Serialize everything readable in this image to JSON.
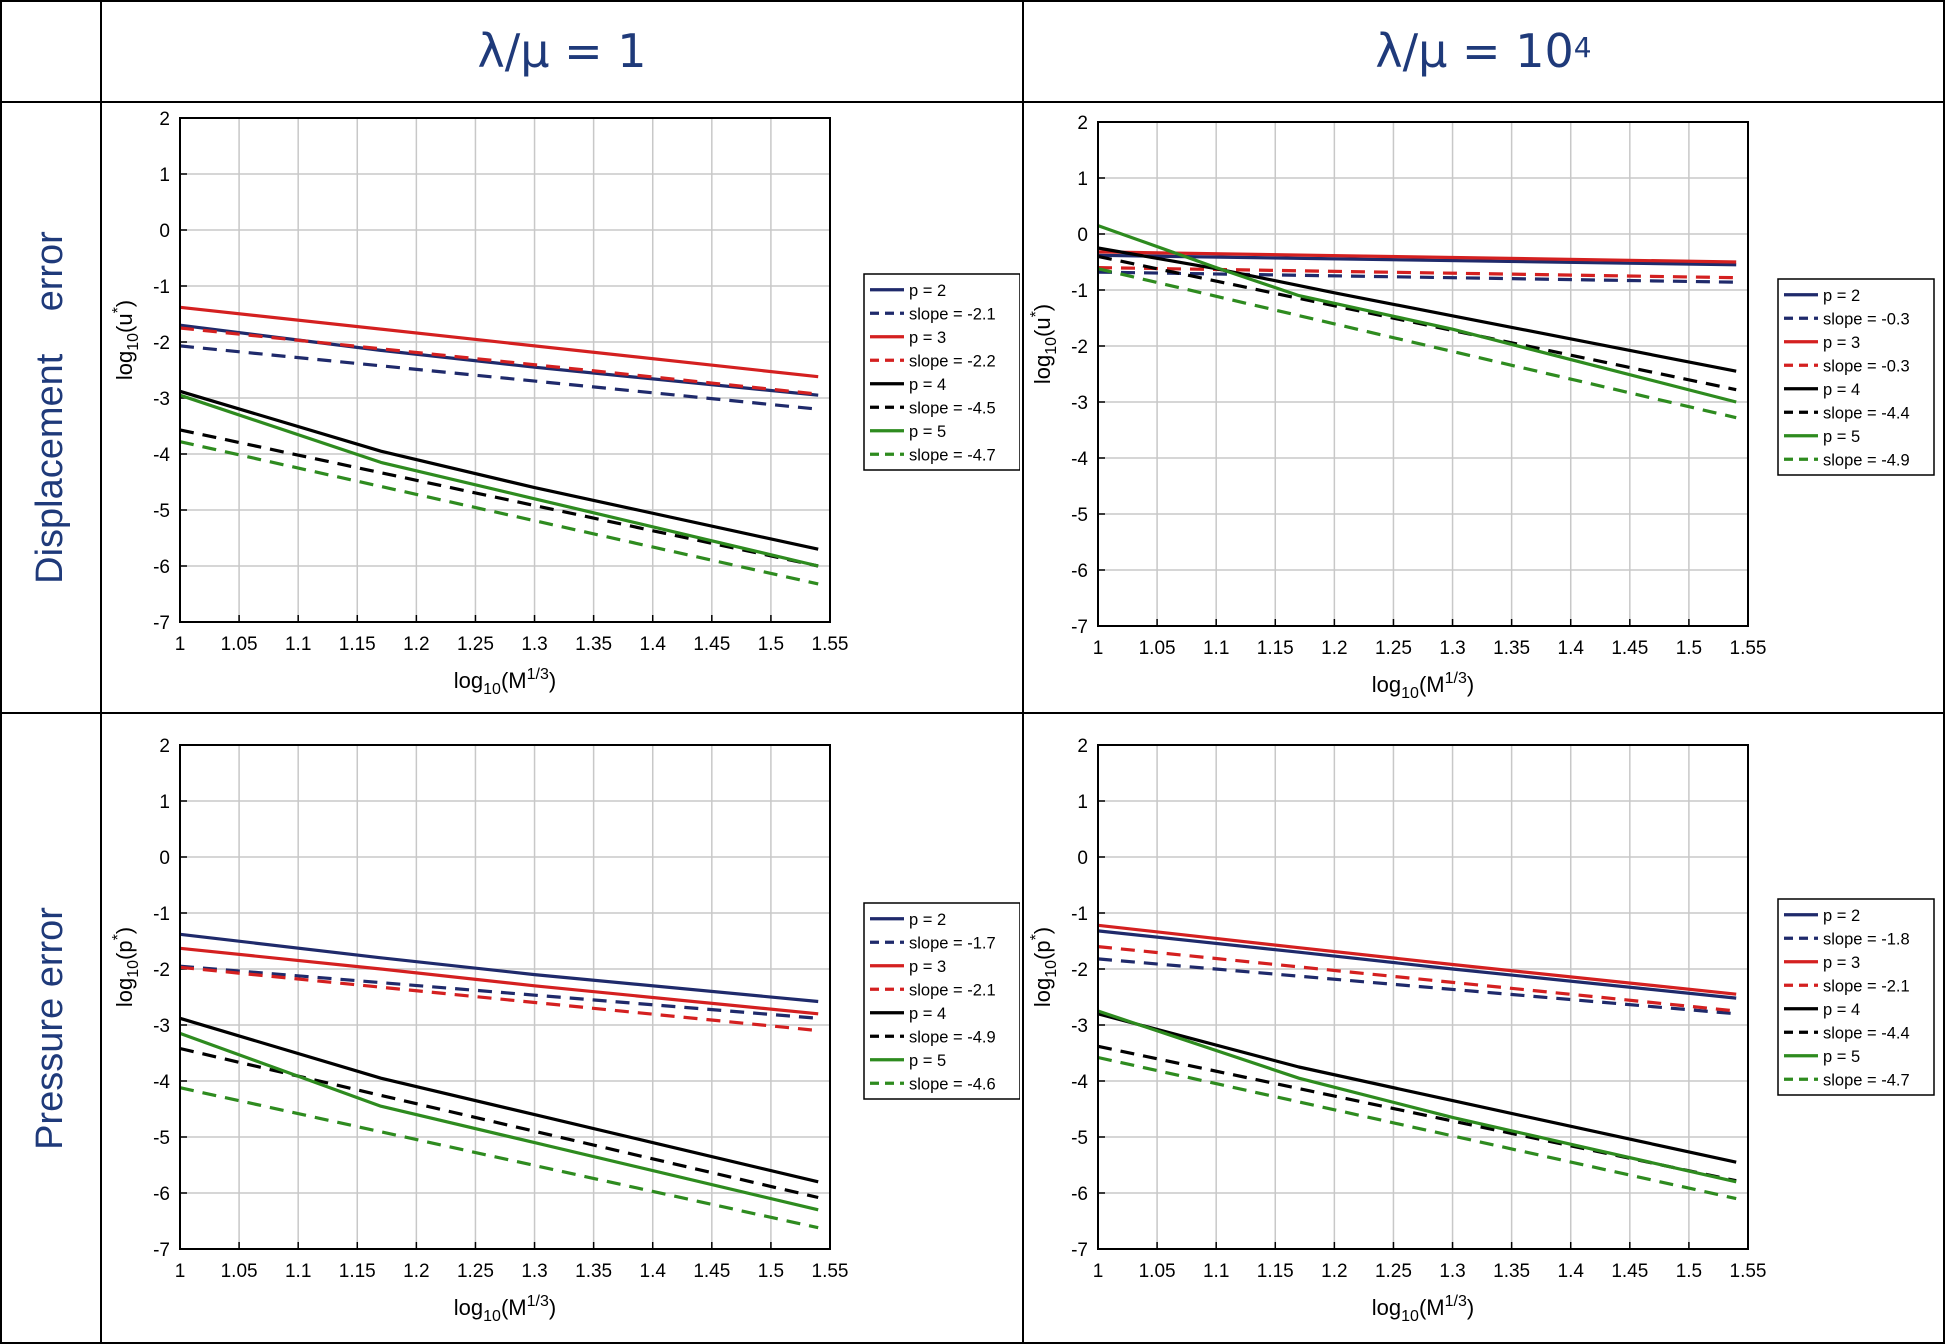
{
  "table": {
    "col_headers": [
      {
        "main": "λ/μ = 1",
        "sup": ""
      },
      {
        "main": "λ/μ = 10",
        "sup": "4"
      }
    ],
    "row_headers": [
      {
        "part1": "Displacement",
        "part2": "error"
      },
      {
        "part1": "Pressure error",
        "part2": ""
      }
    ]
  },
  "chart_data": [
    {
      "type": "line",
      "panel": "displacement, λ/μ = 1",
      "xlabel": "log10(M1/3)",
      "ylabel": "log10(u*)",
      "xlim": [
        1,
        1.55
      ],
      "ylim": [
        -7,
        2
      ],
      "xticks": [
        "1",
        "1.05",
        "1.1",
        "1.15",
        "1.2",
        "1.25",
        "1.3",
        "1.35",
        "1.4",
        "1.45",
        "1.5",
        "1.55"
      ],
      "yticks": [
        "-7",
        "-6",
        "-5",
        "-4",
        "-3",
        "-2",
        "-1",
        "0",
        "1",
        "2"
      ],
      "grid": true,
      "legend_position": "outside-right",
      "series": [
        {
          "name": "p = 2",
          "color": "#1f2a6b",
          "dash": false,
          "x": [
            1,
            1.17,
            1.3,
            1.54
          ],
          "y": [
            -1.7,
            -2.15,
            -2.45,
            -2.95
          ]
        },
        {
          "name": "slope = -2.1",
          "color": "#1f2a6b",
          "dash": true,
          "x": [
            1,
            1.54
          ],
          "y": [
            -2.07,
            -3.2
          ]
        },
        {
          "name": "p = 3",
          "color": "#d42020",
          "dash": false,
          "x": [
            1,
            1.54
          ],
          "y": [
            -1.38,
            -2.62
          ]
        },
        {
          "name": "slope = -2.2",
          "color": "#d42020",
          "dash": true,
          "x": [
            1,
            1.54
          ],
          "y": [
            -1.75,
            -2.93
          ]
        },
        {
          "name": "p = 4",
          "color": "#000000",
          "dash": false,
          "x": [
            1,
            1.17,
            1.3,
            1.54
          ],
          "y": [
            -2.88,
            -3.95,
            -4.6,
            -5.7
          ]
        },
        {
          "name": "slope = -4.5",
          "color": "#000000",
          "dash": true,
          "x": [
            1,
            1.54
          ],
          "y": [
            -3.57,
            -6.0
          ]
        },
        {
          "name": "p = 5",
          "color": "#2e8b1f",
          "dash": false,
          "x": [
            1,
            1.17,
            1.3,
            1.54
          ],
          "y": [
            -2.95,
            -4.15,
            -4.8,
            -6.0
          ]
        },
        {
          "name": "slope = -4.7",
          "color": "#2e8b1f",
          "dash": true,
          "x": [
            1,
            1.54
          ],
          "y": [
            -3.78,
            -6.32
          ]
        }
      ]
    },
    {
      "type": "line",
      "panel": "displacement, λ/μ = 10^4",
      "xlabel": "log10(M1/3)",
      "ylabel": "log10(u*)",
      "xlim": [
        1,
        1.55
      ],
      "ylim": [
        -7,
        2
      ],
      "xticks": [
        "1",
        "1.05",
        "1.1",
        "1.15",
        "1.2",
        "1.25",
        "1.3",
        "1.35",
        "1.4",
        "1.45",
        "1.5",
        "1.55"
      ],
      "yticks": [
        "-7",
        "-6",
        "-5",
        "-4",
        "-3",
        "-2",
        "-1",
        "0",
        "1",
        "2"
      ],
      "grid": true,
      "legend_position": "outside-right",
      "series": [
        {
          "name": "p = 2",
          "color": "#1f2a6b",
          "dash": false,
          "x": [
            1,
            1.54
          ],
          "y": [
            -0.38,
            -0.55
          ]
        },
        {
          "name": "slope = -0.3",
          "color": "#1f2a6b",
          "dash": true,
          "x": [
            1,
            1.54
          ],
          "y": [
            -0.68,
            -0.86
          ]
        },
        {
          "name": "p = 3",
          "color": "#d42020",
          "dash": false,
          "x": [
            1,
            1.54
          ],
          "y": [
            -0.32,
            -0.5
          ]
        },
        {
          "name": "slope = -0.3",
          "color": "#d42020",
          "dash": true,
          "x": [
            1,
            1.54
          ],
          "y": [
            -0.6,
            -0.78
          ]
        },
        {
          "name": "p = 4",
          "color": "#000000",
          "dash": false,
          "x": [
            1,
            1.1,
            1.2,
            1.54
          ],
          "y": [
            -0.25,
            -0.62,
            -1.05,
            -2.45
          ]
        },
        {
          "name": "slope = -4.4",
          "color": "#000000",
          "dash": true,
          "x": [
            1,
            1.54
          ],
          "y": [
            -0.4,
            -2.78
          ]
        },
        {
          "name": "p = 5",
          "color": "#2e8b1f",
          "dash": false,
          "x": [
            1,
            1.1,
            1.17,
            1.3,
            1.54
          ],
          "y": [
            0.15,
            -0.6,
            -1.1,
            -1.7,
            -3.0
          ]
        },
        {
          "name": "slope = -4.9",
          "color": "#2e8b1f",
          "dash": true,
          "x": [
            1,
            1.54
          ],
          "y": [
            -0.62,
            -3.28
          ]
        }
      ]
    },
    {
      "type": "line",
      "panel": "pressure, λ/μ = 1",
      "xlabel": "log10(M1/3)",
      "ylabel": "log10(p*)",
      "xlim": [
        1,
        1.55
      ],
      "ylim": [
        -7,
        2
      ],
      "xticks": [
        "1",
        "1.05",
        "1.1",
        "1.15",
        "1.2",
        "1.25",
        "1.3",
        "1.35",
        "1.4",
        "1.45",
        "1.5",
        "1.55"
      ],
      "yticks": [
        "-7",
        "-6",
        "-5",
        "-4",
        "-3",
        "-2",
        "-1",
        "0",
        "1",
        "2"
      ],
      "grid": true,
      "legend_position": "outside-right",
      "series": [
        {
          "name": "p = 2",
          "color": "#1f2a6b",
          "dash": false,
          "x": [
            1,
            1.17,
            1.3,
            1.54
          ],
          "y": [
            -1.38,
            -1.8,
            -2.1,
            -2.58
          ]
        },
        {
          "name": "slope = -1.7",
          "color": "#1f2a6b",
          "dash": true,
          "x": [
            1,
            1.54
          ],
          "y": [
            -1.95,
            -2.88
          ]
        },
        {
          "name": "p = 3",
          "color": "#d42020",
          "dash": false,
          "x": [
            1,
            1.17,
            1.3,
            1.54
          ],
          "y": [
            -1.63,
            -2.0,
            -2.3,
            -2.8
          ]
        },
        {
          "name": "slope = -2.1",
          "color": "#d42020",
          "dash": true,
          "x": [
            1,
            1.54
          ],
          "y": [
            -1.97,
            -3.1
          ]
        },
        {
          "name": "p = 4",
          "color": "#000000",
          "dash": false,
          "x": [
            1,
            1.17,
            1.3,
            1.54
          ],
          "y": [
            -2.88,
            -3.95,
            -4.6,
            -5.8
          ]
        },
        {
          "name": "slope = -4.9",
          "color": "#000000",
          "dash": true,
          "x": [
            1,
            1.54
          ],
          "y": [
            -3.42,
            -6.08
          ]
        },
        {
          "name": "p = 5",
          "color": "#2e8b1f",
          "dash": false,
          "x": [
            1,
            1.17,
            1.3,
            1.54
          ],
          "y": [
            -3.15,
            -4.45,
            -5.1,
            -6.3
          ]
        },
        {
          "name": "slope = -4.6",
          "color": "#2e8b1f",
          "dash": true,
          "x": [
            1,
            1.54
          ],
          "y": [
            -4.12,
            -6.62
          ]
        }
      ]
    },
    {
      "type": "line",
      "panel": "pressure, λ/μ = 10^4",
      "xlabel": "log10(M1/3)",
      "ylabel": "log10(p*)",
      "xlim": [
        1,
        1.55
      ],
      "ylim": [
        -7,
        2
      ],
      "xticks": [
        "1",
        "1.05",
        "1.1",
        "1.15",
        "1.2",
        "1.25",
        "1.3",
        "1.35",
        "1.4",
        "1.45",
        "1.5",
        "1.55"
      ],
      "yticks": [
        "-7",
        "-6",
        "-5",
        "-4",
        "-3",
        "-2",
        "-1",
        "0",
        "1",
        "2"
      ],
      "grid": true,
      "legend_position": "outside-right",
      "series": [
        {
          "name": "p = 2",
          "color": "#1f2a6b",
          "dash": false,
          "x": [
            1,
            1.17,
            1.3,
            1.54
          ],
          "y": [
            -1.32,
            -1.7,
            -2.0,
            -2.52
          ]
        },
        {
          "name": "slope = -1.8",
          "color": "#1f2a6b",
          "dash": true,
          "x": [
            1,
            1.54
          ],
          "y": [
            -1.82,
            -2.8
          ]
        },
        {
          "name": "p = 3",
          "color": "#d42020",
          "dash": false,
          "x": [
            1,
            1.17,
            1.3,
            1.54
          ],
          "y": [
            -1.22,
            -1.62,
            -1.92,
            -2.45
          ]
        },
        {
          "name": "slope = -2.1",
          "color": "#d42020",
          "dash": true,
          "x": [
            1,
            1.54
          ],
          "y": [
            -1.6,
            -2.75
          ]
        },
        {
          "name": "p = 4",
          "color": "#000000",
          "dash": false,
          "x": [
            1,
            1.17,
            1.3,
            1.54
          ],
          "y": [
            -2.8,
            -3.75,
            -4.35,
            -5.45
          ]
        },
        {
          "name": "slope = -4.4",
          "color": "#000000",
          "dash": true,
          "x": [
            1,
            1.54
          ],
          "y": [
            -3.38,
            -5.78
          ]
        },
        {
          "name": "p = 5",
          "color": "#2e8b1f",
          "dash": false,
          "x": [
            1,
            1.17,
            1.3,
            1.54
          ],
          "y": [
            -2.75,
            -3.95,
            -4.65,
            -5.8
          ]
        },
        {
          "name": "slope = -4.7",
          "color": "#2e8b1f",
          "dash": true,
          "x": [
            1,
            1.54
          ],
          "y": [
            -3.58,
            -6.1
          ]
        }
      ]
    }
  ]
}
